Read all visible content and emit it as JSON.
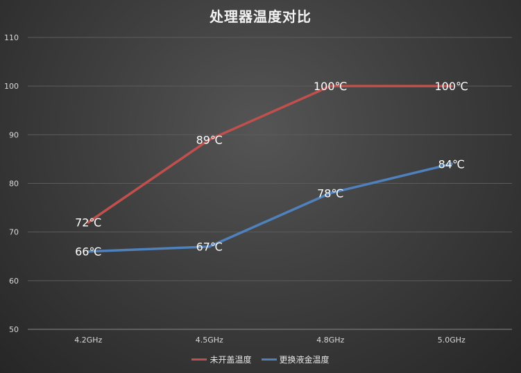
{
  "chart_data": {
    "type": "line",
    "title": "处理器温度对比",
    "xlabel": "",
    "ylabel": "",
    "categories": [
      "4.2GHz",
      "4.5GHz",
      "4.8GHz",
      "5.0GHz"
    ],
    "ylim": [
      50,
      110
    ],
    "yticks": [
      50,
      60,
      70,
      80,
      90,
      100,
      110
    ],
    "grid": true,
    "legend_position": "bottom",
    "series": [
      {
        "name": "未开盖温度",
        "values": [
          72,
          89,
          100,
          100
        ],
        "labels": [
          "72℃",
          "89℃",
          "100℃",
          "100℃"
        ],
        "color": "#c0504d"
      },
      {
        "name": "更换液金温度",
        "values": [
          66,
          67,
          78,
          84
        ],
        "labels": [
          "66℃",
          "67℃",
          "78℃",
          "84℃"
        ],
        "color": "#4f81bd"
      }
    ]
  }
}
